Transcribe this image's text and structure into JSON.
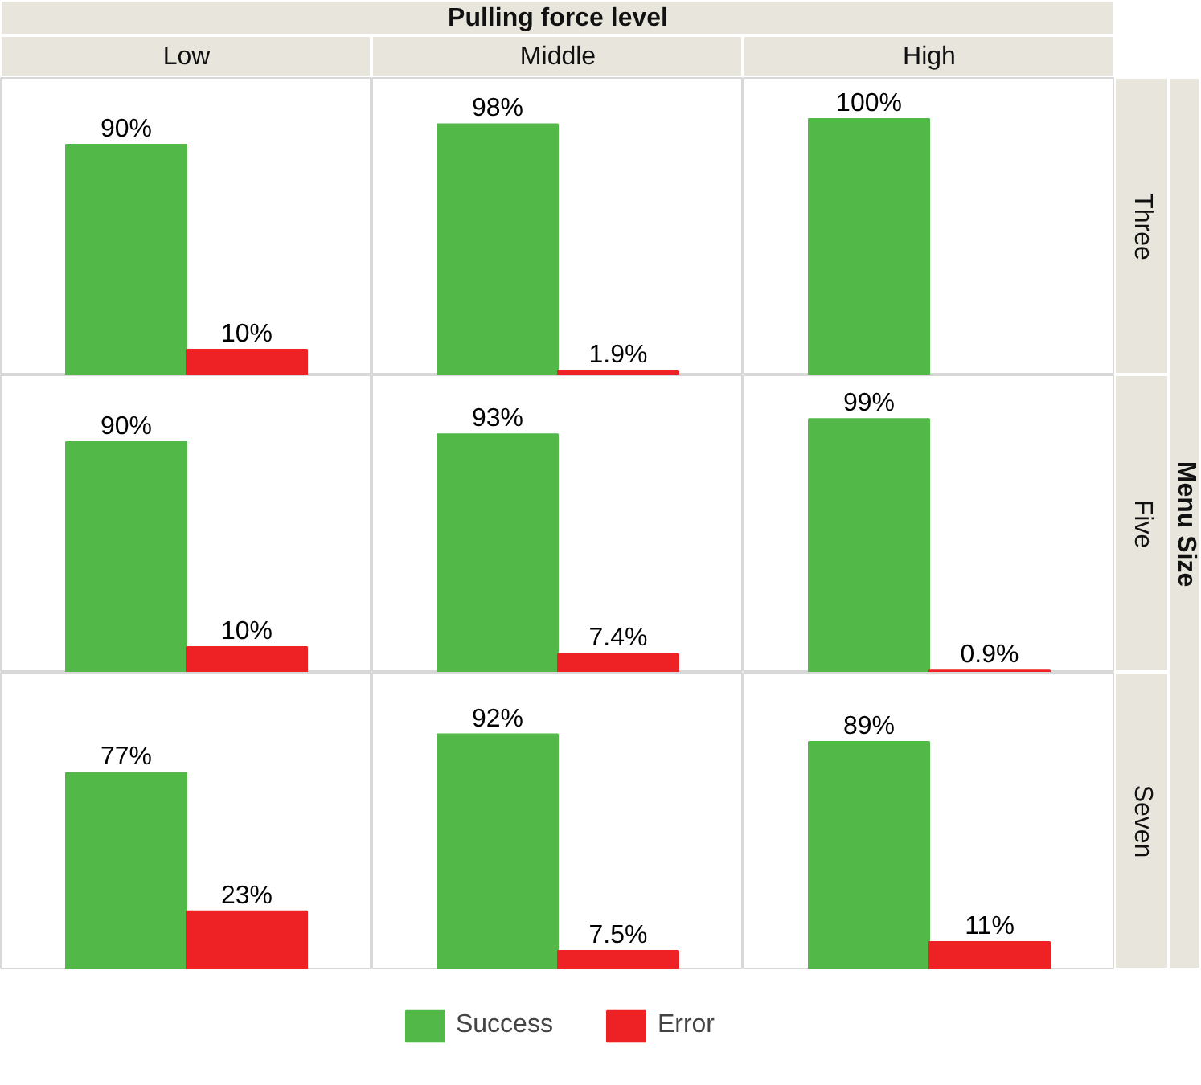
{
  "chart_data": [
    {
      "type": "bar",
      "title": "Low",
      "categories": [
        null
      ],
      "data_labels": true,
      "series": [
        {
          "color": "#52b848",
          "values": [
            90
          ],
          "value_labels": [
            "90%"
          ]
        },
        {
          "color": "#ee2225",
          "values": [
            10
          ],
          "value_labels": [
            "10%"
          ]
        }
      ]
    },
    {
      "type": "bar",
      "title": "Middle",
      "annotations": [
        "Pulling force level"
      ],
      "categories": [
        null
      ],
      "data_labels": true,
      "series": [
        {
          "color": "#52b848",
          "values": [
            98
          ],
          "value_labels": [
            "98%"
          ]
        },
        {
          "color": "#ee2225",
          "values": [
            1.9
          ],
          "value_labels": [
            "1.9%"
          ]
        }
      ]
    },
    {
      "type": "bar",
      "title": "High",
      "y2label": "Three",
      "categories": [
        null
      ],
      "data_labels": true,
      "series": [
        {
          "color": "#52b848",
          "values": [
            100
          ],
          "value_labels": [
            "100%"
          ]
        },
        {
          "color": "#ee2225",
          "values": [
            null
          ],
          "value_labels": [
            null
          ]
        }
      ]
    },
    {
      "type": "bar",
      "categories": [
        null
      ],
      "data_labels": true,
      "series": [
        {
          "color": "#52b848",
          "values": [
            90
          ],
          "value_labels": [
            "90%"
          ]
        },
        {
          "color": "#ee2225",
          "values": [
            10
          ],
          "value_labels": [
            "10%"
          ]
        }
      ]
    },
    {
      "type": "bar",
      "categories": [
        null
      ],
      "data_labels": true,
      "series": [
        {
          "color": "#52b848",
          "values": [
            93
          ],
          "value_labels": [
            "93%"
          ]
        },
        {
          "color": "#ee2225",
          "values": [
            7.4
          ],
          "value_labels": [
            "7.4%"
          ]
        }
      ]
    },
    {
      "type": "bar",
      "y2label": "Five",
      "annotations": [
        "Menu Size"
      ],
      "categories": [
        null
      ],
      "data_labels": true,
      "series": [
        {
          "color": "#52b848",
          "values": [
            99
          ],
          "value_labels": [
            "99%"
          ]
        },
        {
          "color": "#ee2225",
          "values": [
            0.9
          ],
          "value_labels": [
            "0.9%"
          ]
        }
      ]
    },
    {
      "type": "bar",
      "categories": [
        null
      ],
      "data_labels": true,
      "series": [
        {
          "color": "#52b848",
          "values": [
            77
          ],
          "value_labels": [
            "77%"
          ]
        },
        {
          "color": "#ee2225",
          "values": [
            23
          ],
          "value_labels": [
            "23%"
          ]
        }
      ]
    },
    {
      "type": "bar",
      "categories": [
        null
      ],
      "data_labels": true,
      "series": [
        {
          "color": "#52b848",
          "values": [
            92
          ],
          "value_labels": [
            "92%"
          ]
        },
        {
          "color": "#ee2225",
          "values": [
            7.5
          ],
          "value_labels": [
            "7.5%"
          ]
        }
      ]
    },
    {
      "type": "bar",
      "y2label": "Seven",
      "legend": "bottom",
      "categories": [
        null
      ],
      "data_labels": true,
      "series": [
        {
          "name": "Success",
          "color": "#52b848",
          "values": [
            89
          ],
          "value_labels": [
            "89%"
          ]
        },
        {
          "name": "Error",
          "color": "#ee2225",
          "values": [
            11
          ],
          "value_labels": [
            "11%"
          ]
        }
      ]
    }
  ]
}
